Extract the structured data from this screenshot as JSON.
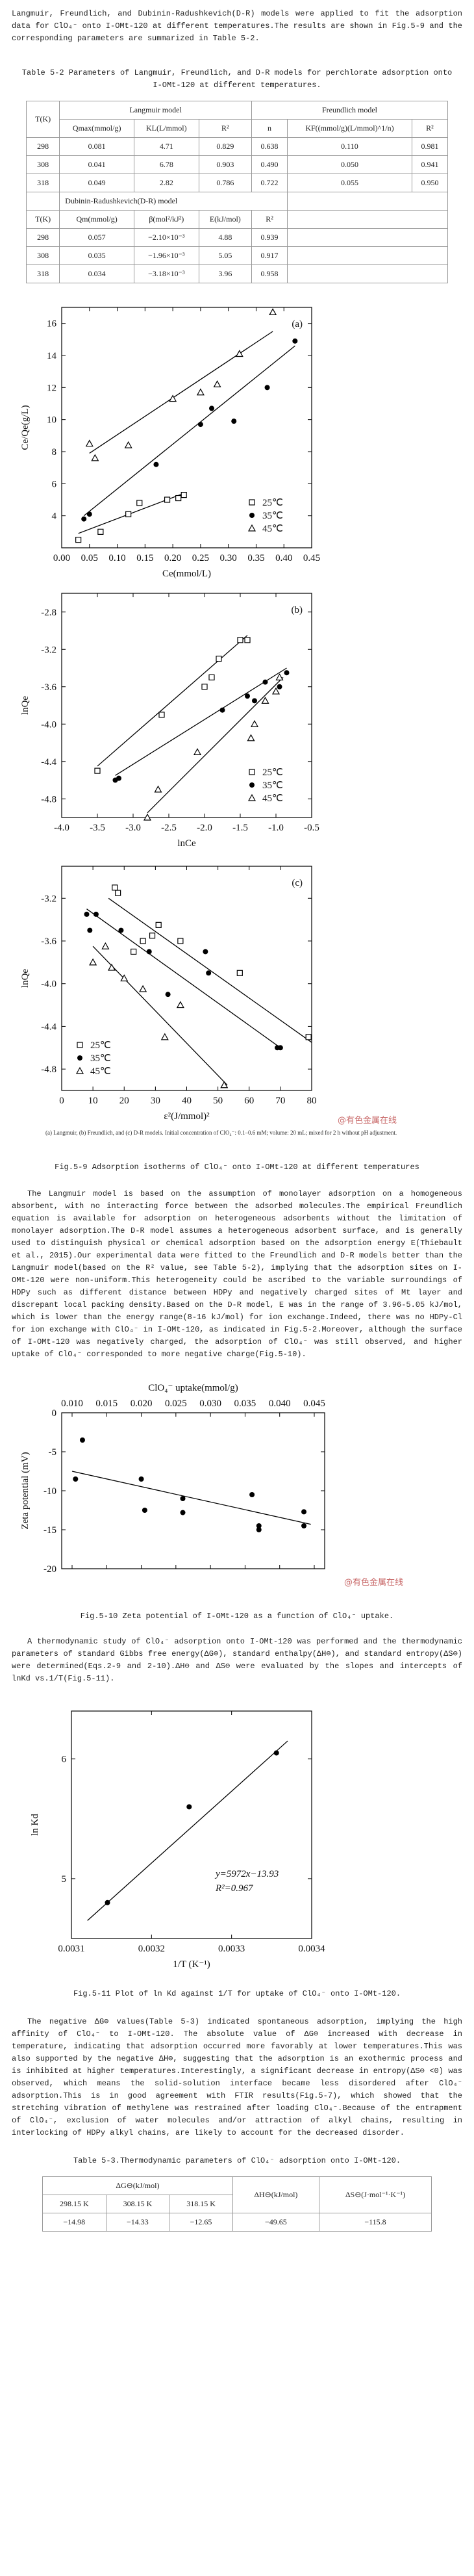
{
  "intro": "Langmuir, Freundlich, and Dubinin-Radushkevich(D-R) models were applied to fit the adsorption data for ClO₄⁻ onto I-OMt-120 at different temperatures.The results are shown in Fig.5-9 and the corresponding parameters are summarized in Table 5-2.",
  "table_5_2": {
    "caption": "Table 5-2 Parameters of Langmuir, Freundlich, and D-R models for perchlorate adsorption onto I-OMt-120 at different temperatures.",
    "group_headers": [
      "T(K)",
      "Langmuir model",
      "Freundlich model"
    ],
    "columns": [
      "Qmax(mmol/g)",
      "KL(L/mmol)",
      "R²",
      "n",
      "KF((mmol/g)(L/mmol)^1/n)",
      "R²"
    ],
    "rows": [
      [
        "298",
        "0.081",
        "4.71",
        "0.829",
        "0.638",
        "0.110",
        "0.981"
      ],
      [
        "308",
        "0.041",
        "6.78",
        "0.903",
        "0.490",
        "0.050",
        "0.941"
      ],
      [
        "318",
        "0.049",
        "2.82",
        "0.786",
        "0.722",
        "0.055",
        "0.950"
      ]
    ],
    "dr_header": "Dubinin-Radushkevich(D-R) model",
    "dr_columns": [
      "T(K)",
      "Qm(mmol/g)",
      "β(mol²/kJ²)",
      "E(kJ/mol)",
      "R²"
    ],
    "dr_rows": [
      [
        "298",
        "0.057",
        "−2.10×10⁻³",
        "4.88",
        "0.939"
      ],
      [
        "308",
        "0.035",
        "−1.96×10⁻³",
        "5.05",
        "0.917"
      ],
      [
        "318",
        "0.034",
        "−3.18×10⁻³",
        "3.96",
        "0.958"
      ]
    ]
  },
  "figure_5_9": {
    "panels": [
      {
        "type": "scatter",
        "panel_label": "(a)",
        "x_label": "Ce(mmol/L)",
        "y_label": "Ce/Qe(g/L)",
        "legend": "lower right",
        "xlim": [
          0,
          0.45
        ],
        "ylim": [
          2,
          17
        ],
        "xticks": [
          {
            "value": 0,
            "label": "0.00"
          },
          {
            "value": 0.05,
            "label": "0.05"
          },
          {
            "value": 0.1,
            "label": "0.10"
          },
          {
            "value": 0.15,
            "label": "0.15"
          },
          {
            "value": 0.2,
            "label": "0.20"
          },
          {
            "value": 0.25,
            "label": "0.25"
          },
          {
            "value": 0.3,
            "label": "0.30"
          },
          {
            "value": 0.35,
            "label": "0.35"
          },
          {
            "value": 0.4,
            "label": "0.40"
          },
          {
            "value": 0.45,
            "label": "0.45"
          }
        ],
        "yticks": [
          4,
          6,
          8,
          10,
          12,
          14,
          16
        ],
        "series": [
          {
            "name": "25℃",
            "marker": "square-open",
            "color": "#000000",
            "x": [
              0.03,
              0.07,
              0.12,
              0.14,
              0.19,
              0.21,
              0.22
            ],
            "y": [
              2.5,
              3.0,
              4.1,
              4.8,
              5.0,
              5.1,
              5.3
            ],
            "fit_x": [
              0.03,
              0.22
            ],
            "fit_y": [
              2.9,
              5.4
            ]
          },
          {
            "name": "35℃",
            "marker": "circle-filled",
            "color": "#000000",
            "x": [
              0.04,
              0.05,
              0.17,
              0.25,
              0.27,
              0.31,
              0.37,
              0.42
            ],
            "y": [
              3.8,
              4.1,
              7.2,
              9.7,
              10.7,
              9.9,
              12.0,
              14.9
            ],
            "fit_x": [
              0.04,
              0.42
            ],
            "fit_y": [
              4.0,
              14.6
            ]
          },
          {
            "name": "45℃",
            "marker": "triangle-open",
            "color": "#000000",
            "x": [
              0.05,
              0.06,
              0.12,
              0.2,
              0.25,
              0.28,
              0.32,
              0.38
            ],
            "y": [
              8.5,
              7.6,
              8.4,
              11.3,
              11.7,
              12.2,
              14.1,
              16.7
            ],
            "fit_x": [
              0.05,
              0.38
            ],
            "fit_y": [
              7.9,
              15.5
            ]
          }
        ]
      },
      {
        "type": "scatter",
        "panel_label": "(b)",
        "x_label": "lnCe",
        "y_label": "lnQe",
        "legend": "lower right",
        "xlim": [
          -4.0,
          -0.5
        ],
        "ylim": [
          -5.0,
          -2.6
        ],
        "xticks": [
          {
            "value": -4,
            "label": "-4.0"
          },
          -3.5,
          {
            "value": -3,
            "label": "-3.0"
          },
          -2.5,
          {
            "value": -2,
            "label": "-2.0"
          },
          -1.5,
          {
            "value": -1,
            "label": "-1.0"
          },
          -0.5
        ],
        "yticks": [
          -2.8,
          -3.2,
          -3.6,
          {
            "value": -4,
            "label": "-4.0"
          },
          -4.4,
          -4.8
        ],
        "series": [
          {
            "name": "25℃",
            "marker": "square-open",
            "color": "#000000",
            "x": [
              -3.5,
              -2.6,
              -2.0,
              -1.9,
              -1.8,
              -1.5,
              -1.4
            ],
            "y": [
              -4.5,
              -3.9,
              -3.6,
              -3.5,
              -3.3,
              -3.1,
              -3.1
            ],
            "fit_x": [
              -3.5,
              -1.4
            ],
            "fit_y": [
              -4.45,
              -3.05
            ]
          },
          {
            "name": "35℃",
            "marker": "circle-filled",
            "color": "#000000",
            "x": [
              -3.25,
              -3.2,
              -1.75,
              -1.4,
              -1.3,
              -1.15,
              -0.95,
              -0.85
            ],
            "y": [
              -4.6,
              -4.58,
              -3.85,
              -3.7,
              -3.75,
              -3.55,
              -3.6,
              -3.45
            ],
            "fit_x": [
              -3.25,
              -0.85
            ],
            "fit_y": [
              -4.55,
              -3.4
            ]
          },
          {
            "name": "45℃",
            "marker": "triangle-open",
            "color": "#000000",
            "x": [
              -2.8,
              -2.65,
              -2.1,
              -1.35,
              -1.3,
              -1.15,
              -1.0,
              -0.95
            ],
            "y": [
              -5.0,
              -4.7,
              -4.3,
              -4.15,
              -4.0,
              -3.75,
              -3.65,
              -3.5
            ],
            "fit_x": [
              -2.8,
              -0.9
            ],
            "fit_y": [
              -4.95,
              -3.5
            ]
          }
        ]
      },
      {
        "type": "scatter",
        "panel_label": "(c)",
        "x_label": "ε²(J/mmol)²",
        "y_label": "lnQe",
        "legend": "lower left",
        "xlim": [
          0,
          80
        ],
        "ylim": [
          -5.0,
          -2.9
        ],
        "xticks": [
          0,
          10,
          20,
          30,
          40,
          50,
          60,
          70,
          80
        ],
        "yticks": [
          -3.2,
          -3.6,
          {
            "value": -4,
            "label": "-4.0"
          },
          -4.4,
          -4.8
        ],
        "series": [
          {
            "name": "25℃",
            "marker": "square-open",
            "color": "#000000",
            "x": [
              17,
              18,
              23,
              26,
              29,
              31,
              38,
              57,
              79
            ],
            "y": [
              -3.1,
              -3.15,
              -3.7,
              -3.6,
              -3.55,
              -3.45,
              -3.6,
              -3.9,
              -4.5
            ],
            "fit_x": [
              15,
              80
            ],
            "fit_y": [
              -3.2,
              -4.55
            ]
          },
          {
            "name": "35℃",
            "marker": "circle-filled",
            "color": "#000000",
            "x": [
              8,
              9,
              11,
              19,
              28,
              34,
              46,
              47,
              69,
              70
            ],
            "y": [
              -3.35,
              -3.5,
              -3.35,
              -3.5,
              -3.7,
              -4.1,
              -3.7,
              -3.9,
              -4.6,
              -4.6
            ],
            "fit_x": [
              8,
              70
            ],
            "fit_y": [
              -3.3,
              -4.6
            ]
          },
          {
            "name": "45℃",
            "marker": "triangle-open",
            "color": "#000000",
            "x": [
              10,
              14,
              16,
              20,
              26,
              33,
              38,
              52
            ],
            "y": [
              -3.8,
              -3.65,
              -3.85,
              -3.95,
              -4.05,
              -4.5,
              -4.2,
              -4.95
            ],
            "fit_x": [
              10,
              53
            ],
            "fit_y": [
              -3.65,
              -4.95
            ]
          }
        ]
      }
    ],
    "note": "(a) Langmuir, (b) Freundlich, and (c) D-R models. Initial concentration of ClO₄⁻: 0.1–0.6 mM; volume: 20 mL; mixed for 2 h without pH adjustment.",
    "caption": "Fig.5-9 Adsorption isotherms of ClO₄⁻ onto I-OMt-120 at different temperatures"
  },
  "watermark": "@有色金属在线",
  "paragraph_2": "The Langmuir model is based on the assumption of monolayer adsorption on a homogeneous absorbent, with no interacting force between the adsorbed molecules.The empirical Freundlich equation is available for adsorption on heterogeneous adsorbents without the limitation of monolayer adsorption.The D-R model assumes a heterogeneous adsorbent surface, and is generally used to distinguish physical or chemical adsorption based on the adsorption energy E(Thiebault et al., 2015).Our experimental data were fitted to the Freundlich and D-R models better than the Langmuir model(based on the R² value, see Table 5-2), implying that the adsorption sites on I-OMt-120 were non-uniform.This heterogeneity could be ascribed to the variable surroundings of HDPy such as different distance between HDPy and negatively charged sites of Mt layer and discrepant local packing density.Based on the D-R model, E was in the range of 3.96-5.05 kJ/mol, which is lower than the energy range(8-16 kJ/mol) for ion exchange.Indeed, there was no HDPy-Cl for ion exchange with ClO₄⁻ in I-OMt-120, as indicated in Fig.5-2.Moreover, although the surface of I-OMt-120 was negatively charged, the adsorption of ClO₄⁻ was still observed, and higher uptake of ClO₄⁻ corresponded to more negative charge(Fig.5-10).",
  "figure_5_10": {
    "type": "scatter",
    "x_label": "ClO₄⁻ uptake(mmol/g)",
    "y_label": "Zeta potential (mV)",
    "x_axis": "top",
    "xlim": [
      0.0085,
      0.0465
    ],
    "ylim": [
      -20,
      0
    ],
    "xticks": [
      {
        "value": 0.01,
        "label": "0.010"
      },
      0.015,
      {
        "value": 0.02,
        "label": "0.020"
      },
      0.025,
      {
        "value": 0.03,
        "label": "0.030"
      },
      0.035,
      {
        "value": 0.04,
        "label": "0.040"
      },
      0.045
    ],
    "yticks": [
      0,
      -5,
      -10,
      -15,
      -20
    ],
    "series": [
      {
        "marker": "circle-filled",
        "color": "#000000",
        "x": [
          0.0115,
          0.0105,
          0.0205,
          0.02,
          0.026,
          0.026,
          0.036,
          0.037,
          0.037,
          0.0435,
          0.0435
        ],
        "y": [
          -3.5,
          -8.5,
          -12.5,
          -8.5,
          -11,
          -12.8,
          -10.5,
          -14.5,
          -15,
          -12.7,
          -14.5
        ],
        "fit_x": [
          0.01,
          0.0445
        ],
        "fit_y": [
          -7.5,
          -14.3
        ]
      }
    ],
    "caption": "Fig.5-10 Zeta potential of I-OMt-120 as a function of ClO₄⁻ uptake."
  },
  "paragraph_3": "A thermodynamic study of ClO₄⁻ adsorption onto I-OMt-120 was performed and the thermodynamic parameters of standard Gibbs free energy(ΔG⊖), standard enthalpy(ΔH⊖), and standard entropy(ΔS⊖) were determined(Eqs.2-9 and 2-10).ΔH⊖ and ΔS⊖ were evaluated by the slopes and intercepts of lnKd vs.1/T(Fig.5-11).",
  "figure_5_11": {
    "type": "scatter",
    "x_label": "1/T (K⁻¹)",
    "y_label": "ln Kd",
    "xlim": [
      0.0031,
      0.0034
    ],
    "ylim": [
      4.5,
      6.4
    ],
    "xticks": [
      0.0031,
      0.0032,
      0.0033,
      0.0034
    ],
    "yticks": [
      5,
      6
    ],
    "annotations": [
      "y=5972x−13.93",
      "R²=0.967"
    ],
    "series": [
      {
        "marker": "circle-filled",
        "color": "#000000",
        "x": [
          0.003145,
          0.003247,
          0.003356
        ],
        "y": [
          4.8,
          5.6,
          6.05
        ],
        "fit_x": [
          0.00312,
          0.00337
        ],
        "fit_y": [
          4.65,
          6.15
        ]
      }
    ],
    "caption": "Fig.5-11 Plot of ln Kd against 1/T for uptake of ClO₄⁻ onto I-OMt-120."
  },
  "paragraph_4": "The negative ΔG⊖ values(Table 5-3) indicated spontaneous adsorption, implying the high affinity of ClO₄⁻ to I-OMt-120. The absolute value of ΔG⊖ increased with decrease in temperature, indicating that adsorption occurred more favorably at lower temperatures.This was also supported by the negative ΔH⊖, suggesting that the adsorption is an exothermic process and is inhibited at higher temperatures.Interestingly, a significant decrease in entropy(ΔS⊖ <0) was observed, which means the solid-solution interface became less disordered after ClO₄⁻ adsorption.This is in good agreement with FTIR results(Fig.5-7), which showed that the stretching vibration of methylene was restrained after loading ClO₄⁻.Because of the entrapment of ClO₄⁻, exclusion of water molecules and/or attraction of alkyl chains, resulting in interlocking of HDPy alkyl chains, are likely to account for the decreased disorder.",
  "table_5_3": {
    "caption": "Table 5-3.Thermodynamic parameters of ClO₄⁻ adsorption onto I-OMt-120.",
    "group_headers": [
      "ΔG⊖(kJ/mol)",
      "ΔH⊖(kJ/mol)",
      "ΔS⊖(J·mol⁻¹·K⁻¹)"
    ],
    "columns": [
      "298.15 K",
      "308.15 K",
      "318.15 K"
    ],
    "rows": [
      [
        "−14.98",
        "−14.33",
        "−12.65",
        "−49.65",
        "−115.8"
      ]
    ]
  }
}
